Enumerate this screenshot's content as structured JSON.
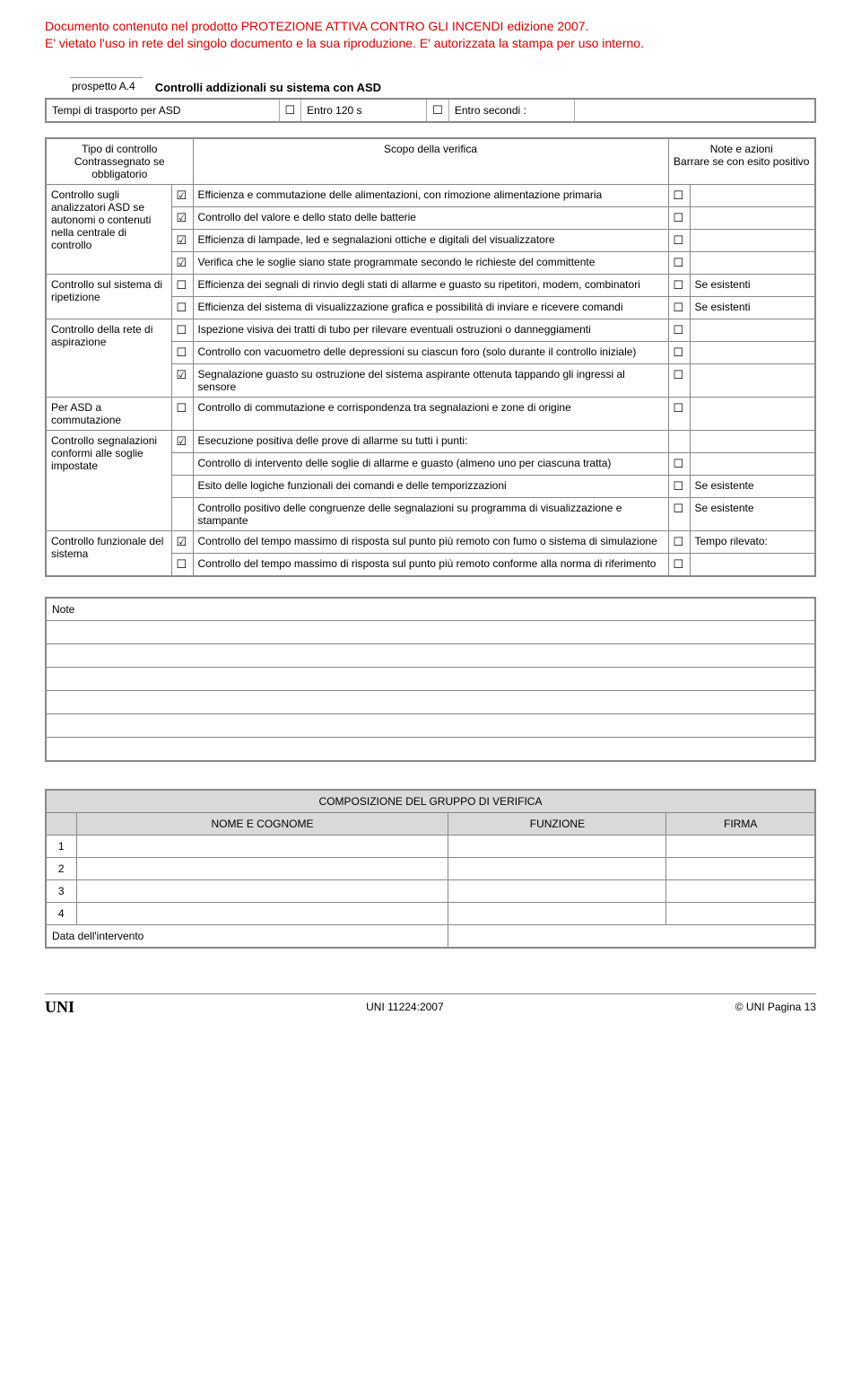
{
  "header": {
    "line1": "Documento contenuto nel prodotto PROTEZIONE ATTIVA CONTRO GLI INCENDI edizione 2007.",
    "line2": "E' vietato l'uso in rete del singolo documento e la sua riproduzione. E' autorizzata la stampa per uso interno."
  },
  "prospetto": {
    "label": "prospetto   A.4",
    "title": "Controlli addizionali su sistema con ASD"
  },
  "topRow": {
    "tempi": "Tempi di trasporto per ASD",
    "entro120": "Entro 120 s",
    "entroSec": "Entro secondi :"
  },
  "mainHeaders": {
    "tipo": "Tipo di controllo",
    "tipoSub": "Contrassegnato se obbligatorio",
    "scopo": "Scopo della verifica",
    "note": "Note e azioni",
    "noteSub": "Barrare se con esito positivo"
  },
  "groups": [
    {
      "label": "Controllo sugli analizzatori ASD se autonomi o contenuti nella centrale di controllo",
      "rows": [
        {
          "m": "☑",
          "text": "Efficienza e commutazione delle alimentazioni, con  rimozione alimentazione primaria",
          "note": ""
        },
        {
          "m": "☑",
          "text": "Controllo del valore e dello stato delle batterie",
          "note": ""
        },
        {
          "m": "☑",
          "text": "Efficienza di lampade, led e segnalazioni ottiche e digitali  del visualizzatore",
          "note": ""
        },
        {
          "m": "☑",
          "text": "Verifica che le soglie siano state programmate secondo le richieste del committente",
          "note": ""
        }
      ]
    },
    {
      "label": "Controllo sul sistema di ripetizione",
      "rows": [
        {
          "m": "☐",
          "text": "Efficienza dei segnali di rinvio degli stati di allarme e guasto su ripetitori, modem, combinatori",
          "note": "Se esistenti"
        },
        {
          "m": "☐",
          "text": "Efficienza del sistema di visualizzazione grafica e possibilità di inviare e ricevere comandi",
          "note": "Se esistenti"
        }
      ]
    },
    {
      "label": "Controllo della rete di aspirazione",
      "rows": [
        {
          "m": "☐",
          "text": "Ispezione visiva dei tratti di tubo per rilevare eventuali ostruzioni o danneggiamenti",
          "note": ""
        },
        {
          "m": "☐",
          "text": "Controllo con vacuometro delle depressioni su ciascun foro (solo durante il controllo iniziale)",
          "note": ""
        },
        {
          "m": "☑",
          "text": "Segnalazione guasto su ostruzione del sistema aspirante ottenuta tappando gli ingressi al sensore",
          "note": ""
        }
      ]
    },
    {
      "label": "Per ASD a commutazione",
      "rows": [
        {
          "m": "☐",
          "text": "Controllo di commutazione e corrispondenza tra segnalazioni e zone di origine",
          "note": ""
        }
      ]
    },
    {
      "label": "Controllo segnalazioni conformi alle soglie impostate",
      "rows": [
        {
          "m": "☑",
          "text": "Esecuzione positiva delle prove di allarme su tutti i punti:",
          "note": "",
          "noResult": true
        },
        {
          "m": "",
          "text": "Controllo di intervento delle  soglie di allarme e guasto (almeno uno per ciascuna tratta)",
          "note": "",
          "noMark": true
        },
        {
          "m": "",
          "text": "Esito delle logiche funzionali dei comandi e delle temporizzazioni",
          "note": "Se esistente",
          "noMark": true
        },
        {
          "m": "",
          "text": "Controllo positivo delle congruenze delle segnalazioni su programma di visualizzazione e stampante",
          "note": "Se esistente",
          "noMark": true
        }
      ]
    },
    {
      "label": "Controllo funzionale del sistema",
      "rows": [
        {
          "m": "☑",
          "text": "Controllo del tempo massimo di risposta sul punto più remoto con fumo o sistema di simulazione",
          "note": "Tempo rilevato:"
        },
        {
          "m": "☐",
          "text": "Controllo del tempo massimo di risposta sul punto più remoto conforme alla norma di riferimento",
          "note": ""
        }
      ]
    }
  ],
  "noteLabel": "Note",
  "groupTable": {
    "title": "COMPOSIZIONE DEL GRUPPO DI VERIFICA",
    "cols": [
      "NOME E COGNOME",
      "FUNZIONE",
      "FIRMA"
    ],
    "rows": [
      "1",
      "2",
      "3",
      "4"
    ],
    "dataRow": "Data dell'intervento"
  },
  "footer": {
    "left": "UNI",
    "center": "UNI 11224:2007",
    "right": "© UNI            Pagina 13"
  },
  "glyphs": {
    "box": "☐"
  }
}
